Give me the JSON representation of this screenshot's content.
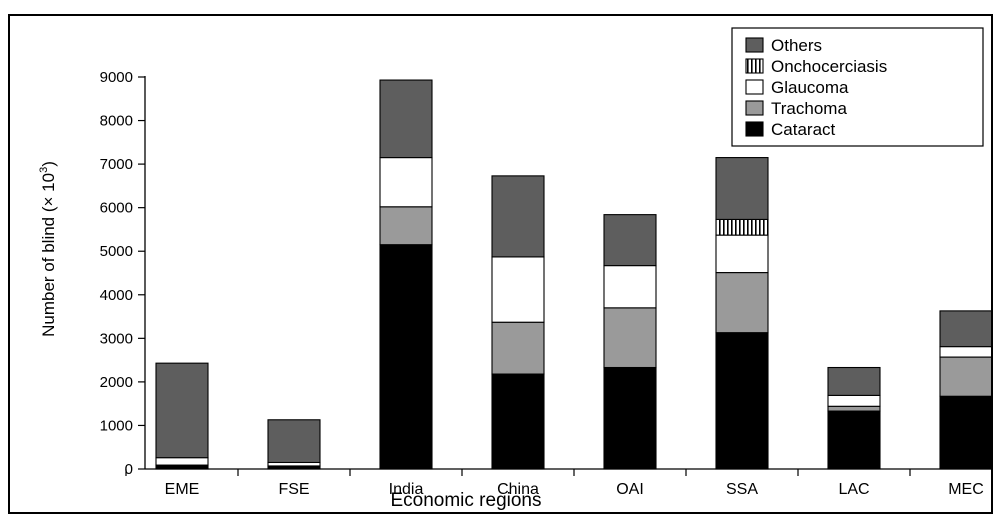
{
  "chart_data": {
    "type": "bar",
    "stacked": true,
    "title": "",
    "xlabel": "Economic regions",
    "ylabel": "Number of blind (× 10",
    "ylabel_sup": "3",
    "ylabel_close": ")",
    "ylim": [
      0,
      9000
    ],
    "yticks": [
      0,
      1000,
      2000,
      3000,
      4000,
      5000,
      6000,
      7000,
      8000,
      9000
    ],
    "grid": false,
    "legend_position": "top-right",
    "categories": [
      "EME",
      "FSE",
      "India",
      "China",
      "OAI",
      "SSA",
      "LAC",
      "MEC"
    ],
    "series": [
      {
        "name": "Cataract",
        "color": "#000000",
        "pattern": "solid",
        "values": [
          90,
          70,
          5150,
          2180,
          2330,
          3130,
          1330,
          1670
        ]
      },
      {
        "name": "Trachoma",
        "color": "#9a9a9a",
        "pattern": "solid",
        "values": [
          0,
          0,
          870,
          1190,
          1370,
          1380,
          110,
          900
        ]
      },
      {
        "name": "Glaucoma",
        "color": "#ffffff",
        "pattern": "solid",
        "values": [
          170,
          80,
          1130,
          1500,
          970,
          860,
          250,
          240
        ]
      },
      {
        "name": "Onchocerciasis",
        "color": "#ffffff",
        "pattern": "vertical-stripes",
        "values": [
          0,
          0,
          0,
          0,
          0,
          360,
          0,
          0
        ]
      },
      {
        "name": "Others",
        "color": "#5e5e5e",
        "pattern": "solid",
        "values": [
          2170,
          980,
          1780,
          1860,
          1170,
          1420,
          640,
          820
        ]
      }
    ],
    "legend_order": [
      "Others",
      "Onchocerciasis",
      "Glaucoma",
      "Trachoma",
      "Cataract"
    ]
  }
}
